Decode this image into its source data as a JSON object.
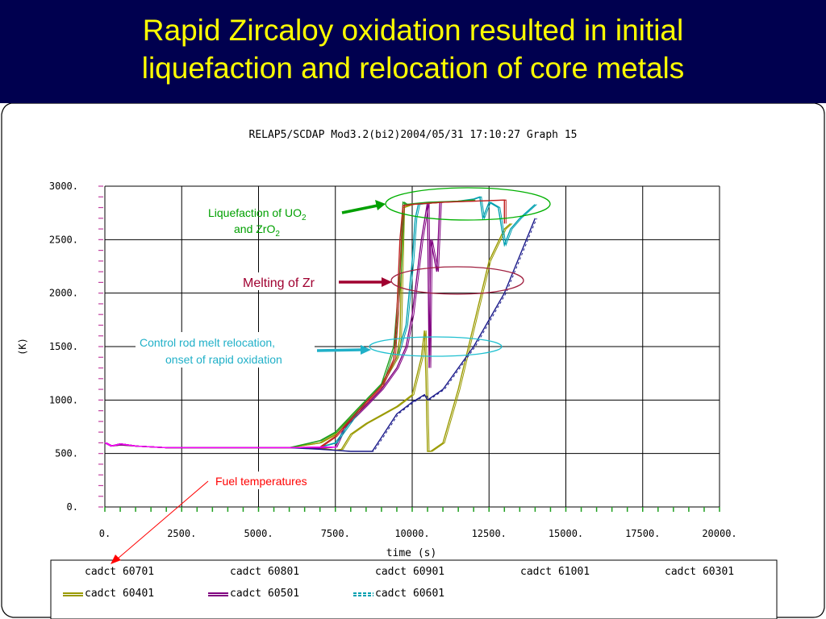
{
  "slide": {
    "title_line1": "Rapid Zircaloy oxidation resulted in initial",
    "title_line2": "liquefaction and relocation of core metals",
    "title_color": "#ffff00",
    "background_color": "#00004f"
  },
  "chart_data": {
    "type": "line",
    "header": "RELAP5/SCDAP Mod3.2(bi2)2004/05/31   17:10:27     Graph  15",
    "xlabel": "time (s)",
    "ylabel": "(K)",
    "xlim": [
      0,
      20000
    ],
    "ylim": [
      0,
      3000
    ],
    "x_ticks": [
      "0.",
      "2500.",
      "5000.",
      "7500.",
      "10000.",
      "12500.",
      "15000.",
      "17500.",
      "20000."
    ],
    "y_ticks": [
      "0.",
      "500.",
      "1000.",
      "1500.",
      "2000.",
      "2500.",
      "3000."
    ],
    "grid": true,
    "legend": {
      "row1": [
        "cadct 60701",
        "cadct 60801",
        "cadct 60901",
        "cadct 61001",
        "cadct 60301"
      ],
      "row2": [
        "cadct 60401",
        "cadct 60501",
        "cadct 60601"
      ]
    },
    "series": [
      {
        "name": "cadct 60401",
        "color": "#9a9a00",
        "x": [
          0,
          200,
          500,
          1000,
          2000,
          4000,
          6000,
          7000,
          7500,
          7700,
          8000,
          8500,
          9000,
          9500,
          10000,
          10300,
          10400,
          10450,
          10500,
          10600,
          11000,
          11500,
          12000,
          12500,
          13000,
          13200
        ],
        "y": [
          600,
          570,
          580,
          570,
          555,
          555,
          555,
          550,
          530,
          540,
          680,
          780,
          860,
          940,
          1050,
          1400,
          1650,
          1200,
          520,
          520,
          600,
          1100,
          1700,
          2300,
          2600,
          2650
        ]
      },
      {
        "name": "cadct 60501",
        "color": "#800080",
        "x": [
          0,
          200,
          500,
          1000,
          2000,
          4000,
          6000,
          7000,
          7500,
          7800,
          8500,
          9000,
          9500,
          9800,
          10000,
          10300,
          10500,
          10550,
          10600,
          10800,
          10900
        ],
        "y": [
          600,
          570,
          580,
          570,
          555,
          555,
          555,
          550,
          560,
          750,
          950,
          1100,
          1300,
          1500,
          1800,
          2500,
          2850,
          1300,
          2500,
          2200,
          2850
        ]
      },
      {
        "name": "cadct 60601",
        "color": "#00a0b0",
        "x": [
          0,
          200,
          500,
          1000,
          2000,
          4000,
          6000,
          7000,
          7500,
          8000,
          8500,
          9000,
          9500,
          9800,
          10000,
          10100,
          10200,
          10500,
          11000,
          11500,
          12000,
          12200,
          12300,
          12500,
          12800,
          13000,
          13200,
          13500,
          14000
        ],
        "y": [
          600,
          570,
          590,
          570,
          555,
          555,
          555,
          560,
          600,
          800,
          1000,
          1150,
          1400,
          1700,
          2300,
          2700,
          2830,
          2840,
          2850,
          2860,
          2880,
          2900,
          2700,
          2850,
          2800,
          2450,
          2600,
          2700,
          2830
        ]
      },
      {
        "name": "cadct 60701",
        "color": "#9a9a00",
        "x": [
          0,
          200,
          500,
          1000,
          2000,
          4000,
          6000,
          7000,
          7500,
          8000,
          8500,
          9000,
          9500,
          9600,
          9700,
          10000,
          11000,
          12000
        ],
        "y": [
          600,
          570,
          590,
          570,
          555,
          555,
          555,
          600,
          680,
          850,
          1000,
          1150,
          1400,
          1600,
          2800,
          2830,
          2850,
          2870
        ]
      },
      {
        "name": "cadct 60801",
        "color": "#20a020",
        "x": [
          0,
          200,
          500,
          1000,
          2000,
          4000,
          6000,
          7000,
          7500,
          8000,
          8500,
          9000,
          9400,
          9600,
          9700,
          9800,
          10500,
          11500,
          12000
        ],
        "y": [
          600,
          570,
          590,
          570,
          555,
          555,
          555,
          620,
          700,
          850,
          1000,
          1150,
          1500,
          2200,
          2850,
          2830,
          2850,
          2860,
          2870
        ]
      },
      {
        "name": "cadct 60901",
        "color": "#c02020",
        "x": [
          0,
          200,
          500,
          1000,
          2000,
          4000,
          6000,
          7000,
          7500,
          8000,
          8500,
          9000,
          9400,
          9500,
          9600,
          9700,
          10000,
          11000,
          12000,
          13000,
          13000
        ],
        "y": [
          600,
          570,
          590,
          570,
          555,
          555,
          555,
          560,
          660,
          820,
          980,
          1130,
          1380,
          1800,
          2500,
          2820,
          2830,
          2850,
          2860,
          2870,
          2650
        ]
      },
      {
        "name": "cadct 61001",
        "color": "#1a1a8a",
        "x": [
          0,
          200,
          500,
          1000,
          2000,
          4000,
          6000,
          7000,
          7500,
          8000,
          8500,
          8700,
          9000,
          9500,
          10000,
          10400,
          10500,
          11000,
          12000,
          13000,
          14000
        ],
        "y": [
          600,
          570,
          590,
          570,
          555,
          555,
          555,
          540,
          530,
          520,
          520,
          520,
          650,
          870,
          980,
          1050,
          1000,
          1100,
          1500,
          2000,
          2700
        ]
      },
      {
        "name": "cadct 60301",
        "color": "#ff00ff",
        "x": [
          0,
          200,
          500,
          1000,
          2000,
          4000,
          6000,
          7000,
          7500
        ],
        "y": [
          600,
          570,
          590,
          570,
          555,
          555,
          555,
          560,
          560
        ]
      }
    ],
    "annotations": [
      {
        "text_line1": "Liquefaction of UO",
        "sub1": "2",
        "text_line2": "and ZrO",
        "sub2": "2",
        "color": "#00a000"
      },
      {
        "text": "Melting of Zr",
        "color": "#a00030"
      },
      {
        "text_line1": "Control rod melt relocation,",
        "text_line2": "onset of rapid oxidation",
        "color": "#20b0c8"
      },
      {
        "text": "Fuel temperatures",
        "color": "#ff0000"
      }
    ]
  }
}
